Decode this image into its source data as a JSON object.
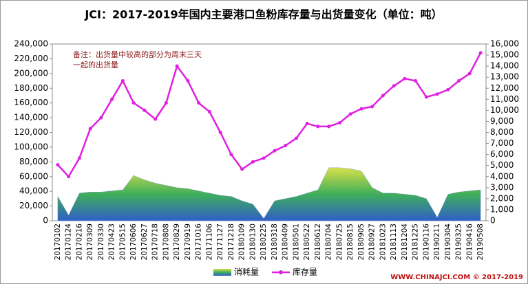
{
  "chart_data": {
    "type": "area-line",
    "title": "JCI：2017-2019年国内主要港口鱼粉库存量与出货量变化（单位：吨）",
    "annotation": [
      "备注：出货量中较高的部分为周末三天",
      "一起的出货量"
    ],
    "footer": "WWW.CHINAJCI.COM © 2017-2019",
    "categories": [
      "20170102",
      "20170124",
      "20170216",
      "20170309",
      "20170330",
      "20170423",
      "20170515",
      "20170606",
      "20170627",
      "20170718",
      "20170808",
      "20170829",
      "20170919",
      "20171016",
      "20171106",
      "20171127",
      "20171218",
      "20180109",
      "20180130",
      "20180225",
      "20180318",
      "20180409",
      "20180501",
      "20180522",
      "20180612",
      "20180704",
      "20180725",
      "20180815",
      "20180905",
      "20180927",
      "20181023",
      "20181113",
      "20181204",
      "20181225",
      "20190116",
      "20190211",
      "20190304",
      "20190325",
      "20190416",
      "20190508"
    ],
    "series": [
      {
        "name": "消耗量",
        "type": "area",
        "axis": "y2",
        "color": "#3fae5a",
        "values": [
          2200,
          500,
          2500,
          2600,
          2600,
          2700,
          2800,
          4100,
          3700,
          3400,
          3200,
          3000,
          2900,
          2700,
          2500,
          2300,
          2200,
          1800,
          1500,
          200,
          1800,
          2000,
          2200,
          2500,
          2800,
          4800,
          4800,
          4700,
          4500,
          3000,
          2500,
          2500,
          2400,
          2300,
          2000,
          300,
          2400,
          2600,
          2700,
          2800
        ]
      },
      {
        "name": "库存量",
        "type": "line",
        "axis": "y",
        "color": "#e020e0",
        "values": [
          76000,
          60000,
          85000,
          125000,
          140000,
          165000,
          190000,
          160000,
          150000,
          138000,
          160000,
          210000,
          190000,
          160000,
          148000,
          120000,
          90000,
          70000,
          80000,
          85000,
          95000,
          102000,
          112000,
          132000,
          128000,
          128000,
          133000,
          145000,
          152000,
          155000,
          170000,
          183000,
          193000,
          190000,
          168000,
          172000,
          178000,
          190000,
          200000,
          228000
        ]
      }
    ],
    "ylim": [
      0,
      240000
    ],
    "yticks": [
      0,
      {
        "value": 20000,
        "label": "20,000"
      },
      {
        "value": 40000,
        "label": "40,000"
      },
      {
        "value": 60000,
        "label": "60,000"
      },
      {
        "value": 80000,
        "label": "80,000"
      },
      {
        "value": 100000,
        "label": "100,000"
      },
      {
        "value": 120000,
        "label": "120,000"
      },
      {
        "value": 140000,
        "label": "140,000"
      },
      {
        "value": 160000,
        "label": "160,000"
      },
      {
        "value": 180000,
        "label": "180,000"
      },
      {
        "value": 200000,
        "label": "200,000"
      },
      {
        "value": 220000,
        "label": "220,000"
      },
      {
        "value": 240000,
        "label": "240,000"
      }
    ],
    "y2lim": [
      0,
      16000
    ],
    "y2ticks": [
      0,
      {
        "value": 1000,
        "label": "1,000"
      },
      {
        "value": 2000,
        "label": "2,000"
      },
      {
        "value": 3000,
        "label": "3,000"
      },
      {
        "value": 4000,
        "label": "4,000"
      },
      {
        "value": 5000,
        "label": "5,000"
      },
      {
        "value": 6000,
        "label": "6,000"
      },
      {
        "value": 7000,
        "label": "7,000"
      },
      {
        "value": 8000,
        "label": "8,000"
      },
      {
        "value": 9000,
        "label": "9,000"
      },
      {
        "value": 10000,
        "label": "10,000"
      },
      {
        "value": 11000,
        "label": "11,000"
      },
      {
        "value": 12000,
        "label": "12,000"
      },
      {
        "value": 13000,
        "label": "13,000"
      },
      {
        "value": 14000,
        "label": "14,000"
      },
      {
        "value": 15000,
        "label": "15,000"
      },
      {
        "value": 16000,
        "label": "16,000"
      }
    ],
    "grid": false
  }
}
